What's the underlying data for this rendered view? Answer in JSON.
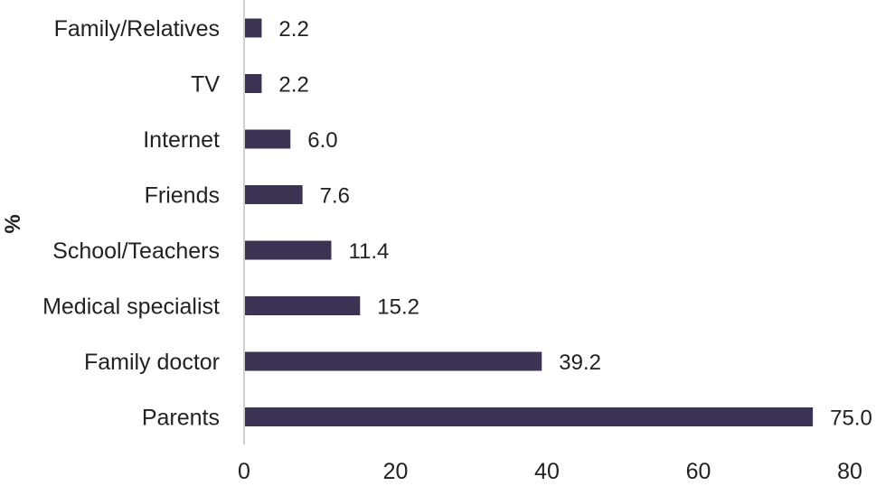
{
  "chart_data": {
    "type": "bar",
    "orientation": "horizontal",
    "categories": [
      "Family/Relatives",
      "TV",
      "Internet",
      "Friends",
      "School/Teachers",
      "Medical specialist",
      "Family doctor",
      "Parents"
    ],
    "values": [
      2.2,
      2.2,
      6.0,
      7.6,
      11.4,
      15.2,
      39.2,
      75.0
    ],
    "value_labels": [
      "2.2",
      "2.2",
      "6.0",
      "7.6",
      "11.4",
      "15.2",
      "39.2",
      "75.0"
    ],
    "xticks": [
      "0",
      "20",
      "40",
      "60",
      "80"
    ],
    "xlim": [
      0,
      80
    ],
    "title": "",
    "xlabel": "",
    "ylabel": "%",
    "grid": false,
    "bar_color": "#3b3254",
    "axis_color": "#bfbfbf"
  }
}
